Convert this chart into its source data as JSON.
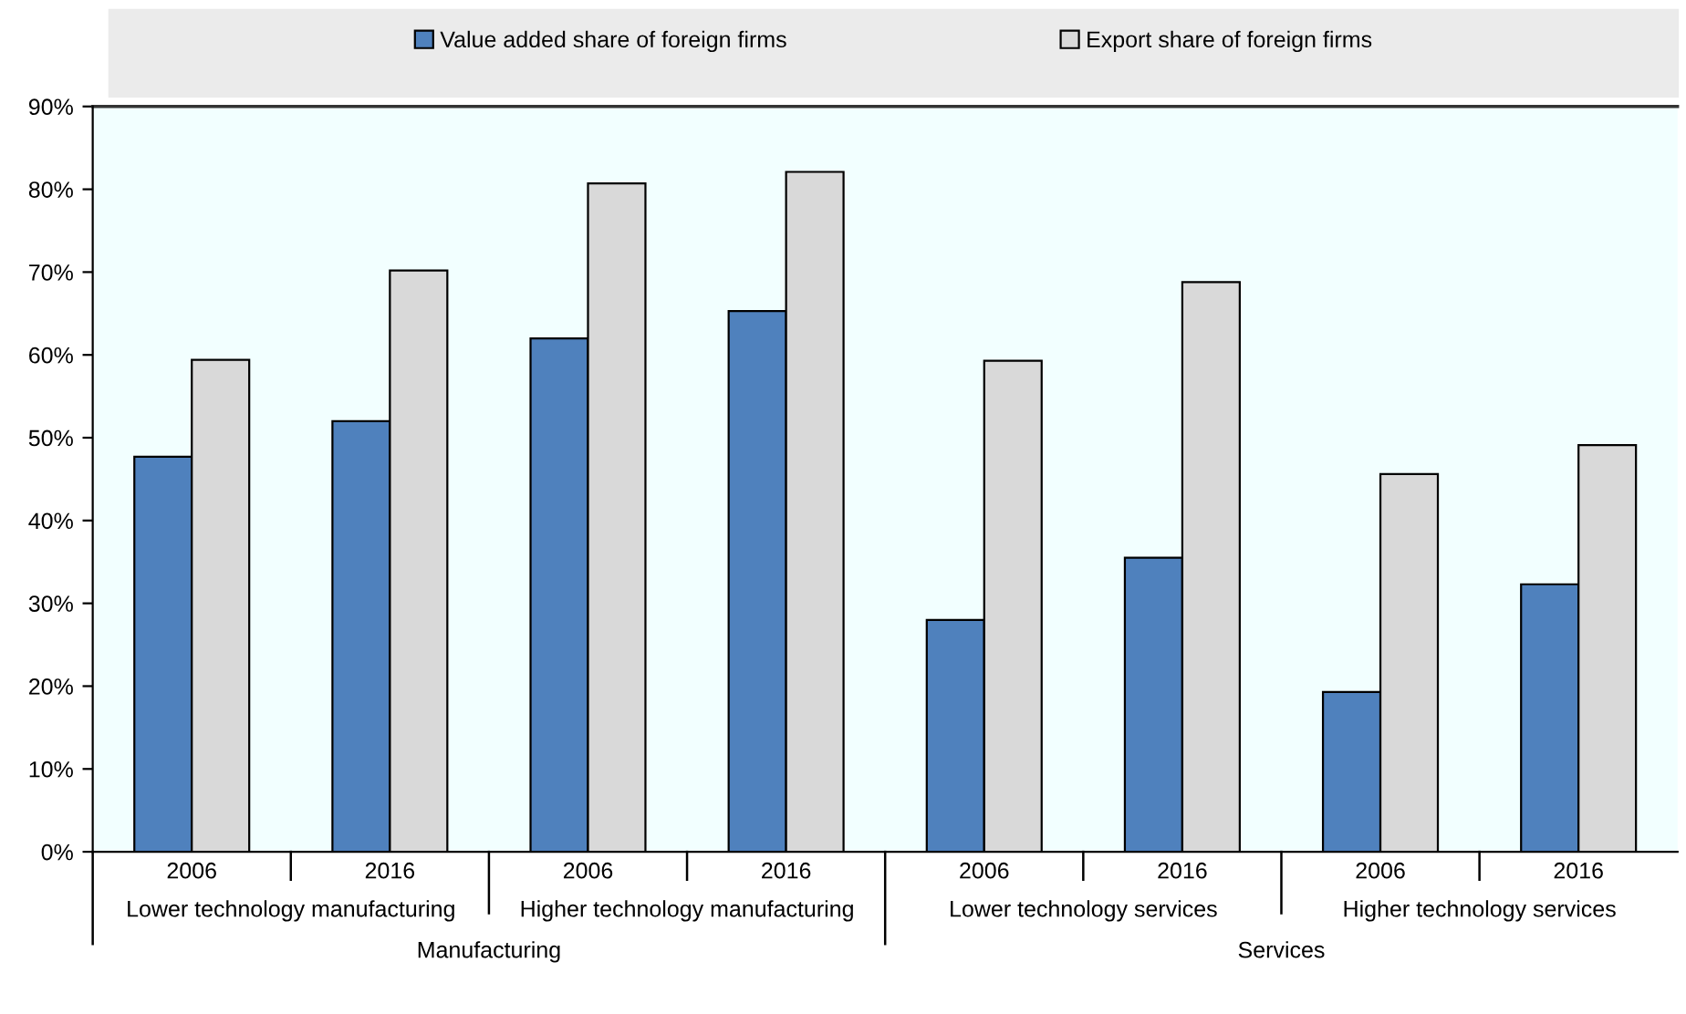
{
  "chart_data": {
    "type": "bar",
    "categories": [
      "2006",
      "2016",
      "2006",
      "2016",
      "2006",
      "2016",
      "2006",
      "2016"
    ],
    "series": [
      {
        "name": "Value added share of foreign firms",
        "color": "#4f81bd",
        "values": [
          47.7,
          52,
          62,
          65.3,
          28,
          35.5,
          19.3,
          32.3
        ]
      },
      {
        "name": "Export share of foreign firms",
        "color": "#d9d9d9",
        "values": [
          59.4,
          70.2,
          80.7,
          82.1,
          59.3,
          68.8,
          45.6,
          49.1
        ]
      }
    ],
    "ylim": [
      0,
      90
    ],
    "yticks": [
      {
        "value": 0,
        "label": "0%"
      },
      {
        "value": 10,
        "label": "10%"
      },
      {
        "value": 20,
        "label": "20%"
      },
      {
        "value": 30,
        "label": "30%"
      },
      {
        "value": 40,
        "label": "40%"
      },
      {
        "value": 50,
        "label": "50%"
      },
      {
        "value": 60,
        "label": "60%"
      },
      {
        "value": 70,
        "label": "70%"
      },
      {
        "value": 80,
        "label": "80%"
      },
      {
        "value": 90,
        "label": "90%"
      }
    ],
    "annotations": [
      "Lower technology manufacturing",
      "Higher technology manufacturing",
      "Lower technology services",
      "Higher technology services",
      "Manufacturing",
      "Services"
    ],
    "legend": "top"
  }
}
